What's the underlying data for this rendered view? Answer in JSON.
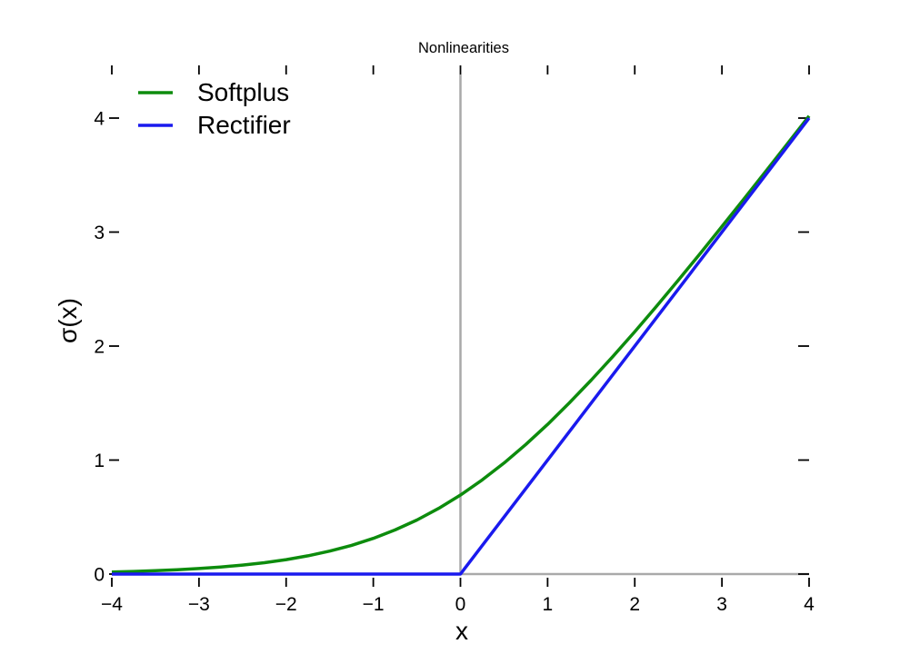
{
  "window": {
    "background": "#ffffff"
  },
  "chart_data": {
    "type": "line",
    "title": "Nonlinearities",
    "xlabel": "x",
    "ylabel": "σ(x)",
    "xlim": [
      -4,
      4
    ],
    "ylim": [
      0,
      4
    ],
    "grid": false,
    "legend_position": "top-left",
    "axis_line_color": "#a9a9a9",
    "tick_color": "#000000",
    "x_ticks": [
      {
        "v": -4,
        "label": "−4"
      },
      {
        "v": -3,
        "label": "−3"
      },
      {
        "v": -2,
        "label": "−2"
      },
      {
        "v": -1,
        "label": "−1"
      },
      {
        "v": 0,
        "label": "0"
      },
      {
        "v": 1,
        "label": "1"
      },
      {
        "v": 2,
        "label": "2"
      },
      {
        "v": 3,
        "label": "3"
      },
      {
        "v": 4,
        "label": "4"
      }
    ],
    "y_ticks": [
      {
        "v": 0,
        "label": "0"
      },
      {
        "v": 1,
        "label": "1"
      },
      {
        "v": 2,
        "label": "2"
      },
      {
        "v": 3,
        "label": "3"
      },
      {
        "v": 4,
        "label": "4"
      }
    ],
    "reference_lines": [
      {
        "axis": "vertical-at-x",
        "at": 0
      },
      {
        "axis": "horizontal-at-y",
        "at": 0
      }
    ],
    "series": [
      {
        "name": "Softplus",
        "color": "#0d8c0d",
        "formula": "ln(1+e^x)",
        "points": [
          [
            -4,
            0.0181
          ],
          [
            -3.75,
            0.0233
          ],
          [
            -3.5,
            0.0298
          ],
          [
            -3.25,
            0.0381
          ],
          [
            -3,
            0.0486
          ],
          [
            -2.75,
            0.0619
          ],
          [
            -2.5,
            0.0786
          ],
          [
            -2.25,
            0.0995
          ],
          [
            -2,
            0.1269
          ],
          [
            -1.75,
            0.1603
          ],
          [
            -1.5,
            0.2014
          ],
          [
            -1.25,
            0.2519
          ],
          [
            -1,
            0.3133
          ],
          [
            -0.75,
            0.3869
          ],
          [
            -0.5,
            0.4741
          ],
          [
            -0.25,
            0.576
          ],
          [
            0,
            0.6931
          ],
          [
            0.25,
            0.826
          ],
          [
            0.5,
            0.9741
          ],
          [
            0.75,
            1.1369
          ],
          [
            1,
            1.3133
          ],
          [
            1.25,
            1.5019
          ],
          [
            1.5,
            1.7014
          ],
          [
            1.75,
            1.9103
          ],
          [
            2,
            2.1269
          ],
          [
            2.25,
            2.3495
          ],
          [
            2.5,
            2.5786
          ],
          [
            2.75,
            2.8119
          ],
          [
            3,
            3.0486
          ],
          [
            3.25,
            3.2881
          ],
          [
            3.5,
            3.5298
          ],
          [
            3.75,
            3.7733
          ],
          [
            4,
            4.0181
          ]
        ]
      },
      {
        "name": "Rectifier",
        "color": "#1a1aee",
        "formula": "max(0,x)",
        "points": [
          [
            -4,
            0
          ],
          [
            0,
            0
          ],
          [
            4,
            4
          ]
        ]
      }
    ]
  }
}
